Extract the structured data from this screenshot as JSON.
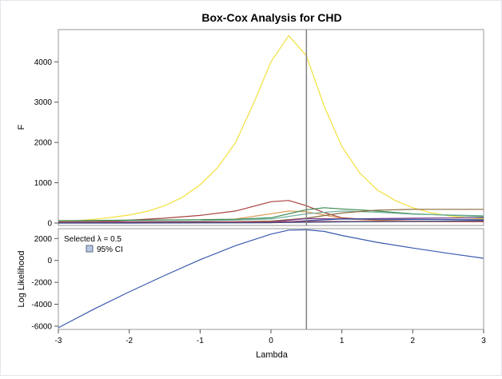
{
  "chart_data": [
    {
      "type": "line",
      "title": "Box-Cox Analysis for CHD",
      "xlabel": "",
      "ylabel": "F",
      "xlim": [
        -3,
        3
      ],
      "ylim": [
        -60,
        4800
      ],
      "xticks": [
        -3,
        -2,
        -1,
        0,
        1,
        2,
        3
      ],
      "yticks": [
        0,
        1000,
        2000,
        3000,
        4000
      ],
      "reference_line_x": 0.5,
      "grid": false,
      "series": [
        {
          "color": "#f2e03c",
          "x": [
            -3,
            -2.75,
            -2.5,
            -2.25,
            -2,
            -1.75,
            -1.5,
            -1.25,
            -1,
            -0.75,
            -0.5,
            -0.25,
            0,
            0.25,
            0.5,
            0.75,
            1,
            1.25,
            1.5,
            1.75,
            2,
            2.25,
            2.5,
            2.75,
            3
          ],
          "y": [
            40,
            60,
            90,
            140,
            200,
            290,
            430,
            640,
            950,
            1380,
            2000,
            2950,
            4000,
            4650,
            4150,
            2900,
            1900,
            1250,
            820,
            560,
            380,
            260,
            180,
            130,
            100
          ]
        },
        {
          "color": "#a8403e",
          "x": [
            -3,
            -2.5,
            -2,
            -1.5,
            -1,
            -0.5,
            0,
            0.25,
            0.5,
            0.75,
            1,
            1.5,
            2,
            2.5,
            3
          ],
          "y": [
            20,
            40,
            70,
            120,
            190,
            300,
            530,
            560,
            430,
            260,
            130,
            70,
            50,
            45,
            40
          ]
        },
        {
          "color": "#e0a060",
          "x": [
            -3,
            -2,
            -1,
            -0.5,
            0,
            0.25,
            0.5,
            0.75,
            1,
            1.5,
            2,
            3
          ],
          "y": [
            10,
            20,
            50,
            100,
            230,
            300,
            280,
            200,
            110,
            60,
            40,
            30
          ]
        },
        {
          "color": "#3a8a50",
          "x": [
            -3,
            -2,
            -1,
            -0.5,
            0,
            0.5,
            0.75,
            1,
            1.5,
            2,
            3
          ],
          "y": [
            60,
            70,
            85,
            95,
            130,
            330,
            380,
            350,
            300,
            230,
            160
          ]
        },
        {
          "color": "#70b0a0",
          "x": [
            -3,
            -2,
            -1,
            0,
            0.5,
            1,
            1.5,
            2,
            3
          ],
          "y": [
            30,
            40,
            50,
            100,
            230,
            300,
            270,
            220,
            180
          ]
        },
        {
          "color": "#8a6a3a",
          "x": [
            -3,
            -2,
            -1,
            0,
            0.5,
            1,
            1.5,
            2,
            3
          ],
          "y": [
            5,
            10,
            20,
            50,
            120,
            250,
            320,
            340,
            340
          ]
        },
        {
          "color": "#7a3a8a",
          "x": [
            -3,
            -2,
            -1,
            0,
            0.5,
            1,
            2,
            3
          ],
          "y": [
            10,
            10,
            15,
            30,
            110,
            100,
            120,
            130
          ]
        },
        {
          "color": "#3050a0",
          "x": [
            -3,
            -2,
            -1,
            0,
            0.5,
            1,
            2,
            3
          ],
          "y": [
            0,
            0,
            5,
            10,
            60,
            100,
            90,
            80
          ]
        },
        {
          "color": "#b04060",
          "x": [
            -3,
            -2,
            -1,
            0,
            0.5,
            1,
            2,
            3
          ],
          "y": [
            30,
            30,
            30,
            30,
            40,
            40,
            40,
            40
          ]
        },
        {
          "color": "#405080",
          "x": [
            -3,
            -2,
            -1,
            0,
            0.5,
            1,
            2,
            3
          ],
          "y": [
            2,
            2,
            5,
            10,
            20,
            30,
            40,
            60
          ]
        }
      ]
    },
    {
      "type": "line",
      "title": "",
      "xlabel": "Lambda",
      "ylabel": "Log Likelihood",
      "xlim": [
        -3,
        3
      ],
      "ylim": [
        -6300,
        2900
      ],
      "xticks": [
        -3,
        -2,
        -1,
        0,
        1,
        2,
        3
      ],
      "yticks": [
        -6000,
        -4000,
        -2000,
        0,
        2000
      ],
      "reference_line_x": 0.5,
      "legend": {
        "position": "top-left",
        "selected_text": "Selected λ = 0.5",
        "ci_text": "95% CI",
        "ci_color": "#b8c8e0"
      },
      "series": [
        {
          "color": "#3a5ab0",
          "x": [
            -3,
            -2.5,
            -2,
            -1.5,
            -1,
            -0.5,
            0,
            0.25,
            0.5,
            0.75,
            1,
            1.5,
            2,
            2.5,
            3
          ],
          "y": [
            -6150,
            -4450,
            -2870,
            -1370,
            70,
            1350,
            2400,
            2770,
            2800,
            2650,
            2280,
            1650,
            1130,
            650,
            200
          ]
        }
      ]
    }
  ]
}
